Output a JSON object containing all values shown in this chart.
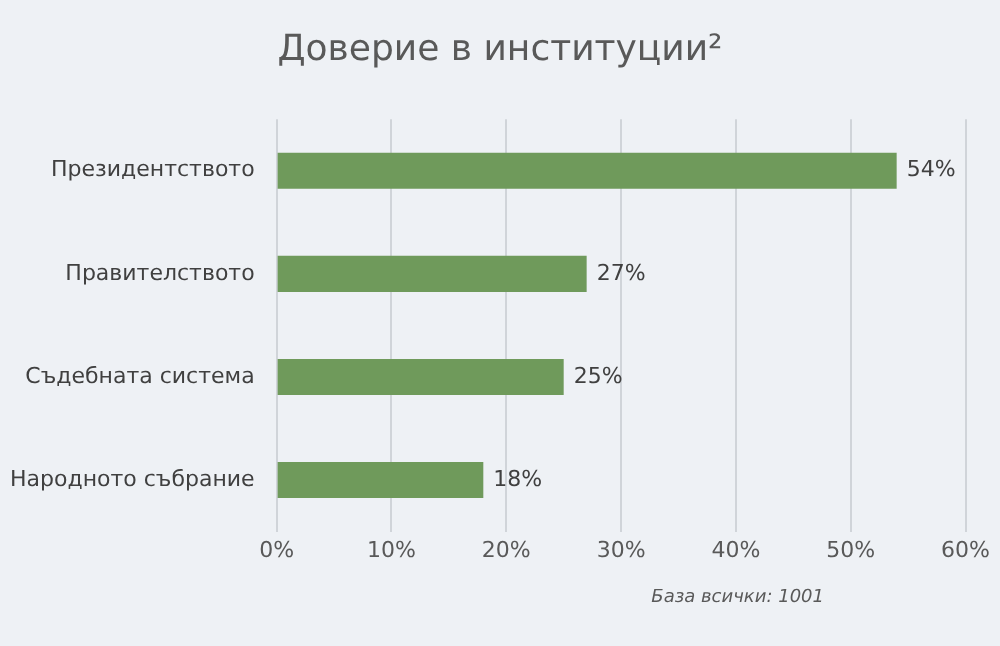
{
  "chart_data": {
    "type": "bar",
    "orientation": "horizontal",
    "title": "Доверие в институции²",
    "categories": [
      "Президентството",
      "Правителството",
      "Съдебната система",
      "Народното събрание"
    ],
    "values": [
      54,
      27,
      25,
      18
    ],
    "color": "#6f9a5b",
    "value_labels": [
      "54%",
      "27%",
      "25%",
      "18%"
    ],
    "xlim": [
      0,
      60
    ],
    "xticks": [
      {
        "value": 0,
        "label": "0%"
      },
      {
        "value": 10,
        "label": "10%"
      },
      {
        "value": 20,
        "label": "20%"
      },
      {
        "value": 30,
        "label": "30%"
      },
      {
        "value": 40,
        "label": "40%"
      },
      {
        "value": 50,
        "label": "50%"
      },
      {
        "value": 60,
        "label": "60%"
      }
    ],
    "grid": "x",
    "legend": false,
    "annotations": [
      "База всички: 1001"
    ]
  }
}
